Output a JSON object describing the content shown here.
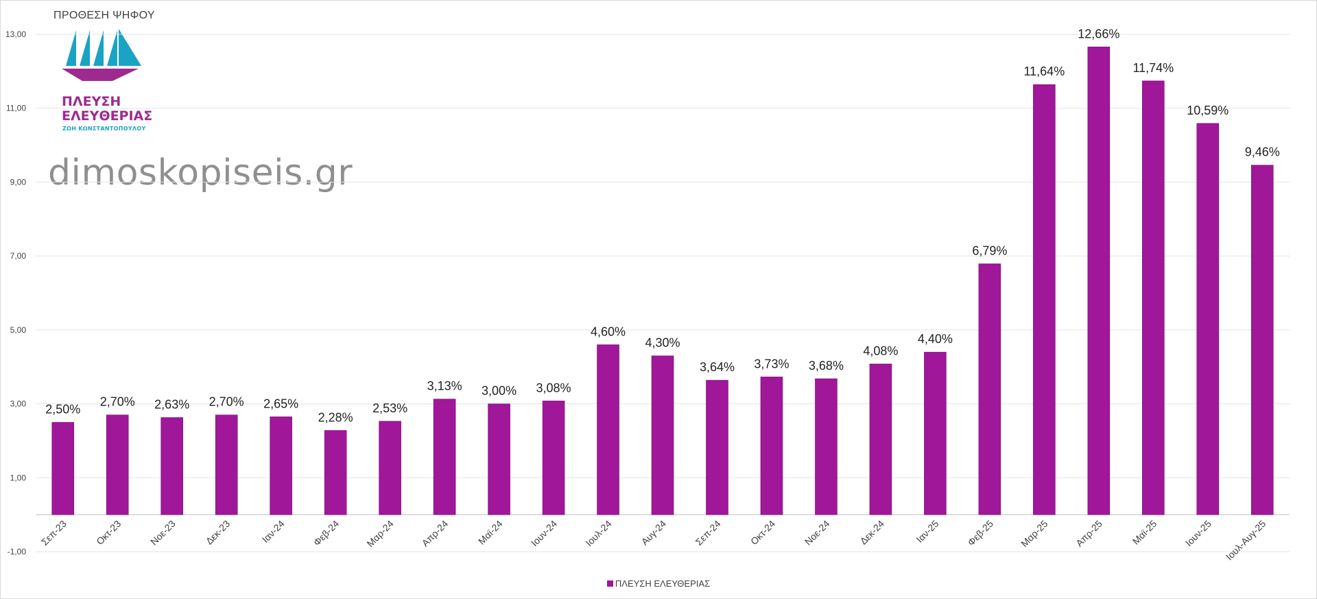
{
  "chart_data": {
    "type": "bar",
    "title": "ΠΡΟΘΕΣΗ ΨΗΦΟΥ",
    "categories": [
      "Σεπ-23",
      "Οκτ-23",
      "Νοε-23",
      "Δεκ-23",
      "Ιαν-24",
      "Φεβ-24",
      "Μαρ-24",
      "Απρ-24",
      "Μαϊ-24",
      "Ιουν-24",
      "Ιουλ-24",
      "Αυγ-24",
      "Σεπ-24",
      "Οκτ-24",
      "Νοε-24",
      "Δεκ-24",
      "Ιαν-25",
      "Φεβ-25",
      "Μαρ-25",
      "Απρ-25",
      "Μαϊ-25",
      "Ιουν-25",
      "Ιουλ-Αυγ-25"
    ],
    "series": [
      {
        "name": "ΠΛΕΥΣΗ ΕΛΕΥΘΕΡΙΑΣ",
        "values": [
          2.5,
          2.7,
          2.63,
          2.7,
          2.65,
          2.28,
          2.53,
          3.13,
          3.0,
          3.08,
          4.6,
          4.3,
          3.64,
          3.73,
          3.68,
          4.08,
          4.4,
          6.79,
          11.64,
          12.66,
          11.74,
          10.59,
          9.46
        ],
        "labels": [
          "2,50%",
          "2,70%",
          "2,63%",
          "2,70%",
          "2,65%",
          "2,28%",
          "2,53%",
          "3,13%",
          "3,00%",
          "3,08%",
          "4,60%",
          "4,30%",
          "3,64%",
          "3,73%",
          "3,68%",
          "4,08%",
          "4,40%",
          "6,79%",
          "11,64%",
          "12,66%",
          "11,74%",
          "10,59%",
          "9,46%"
        ],
        "color": "#a0179a"
      }
    ],
    "y_ticks": [
      -1,
      1,
      3,
      5,
      7,
      9,
      11,
      13
    ],
    "y_tick_labels": [
      "-1,00",
      "1,00",
      "3,00",
      "5,00",
      "7,00",
      "9,00",
      "11,00",
      "13,00"
    ],
    "ylim": [
      -1,
      13
    ],
    "xlabel": "",
    "ylabel": "",
    "grid": true,
    "legend": "bottom-center"
  },
  "branding": {
    "logo_line1": "ΠΛΕΥΣΗ",
    "logo_line2": "ΕΛΕΥΘΕΡΙΑΣ",
    "logo_sub": "ΖΩΗ ΚΩΝΣΤΑΝΤΟΠΟΥΛΟΥ",
    "watermark": "dimoskopiseis.gr",
    "teal": "#1aa3c4",
    "magenta": "#9e2a8f"
  }
}
